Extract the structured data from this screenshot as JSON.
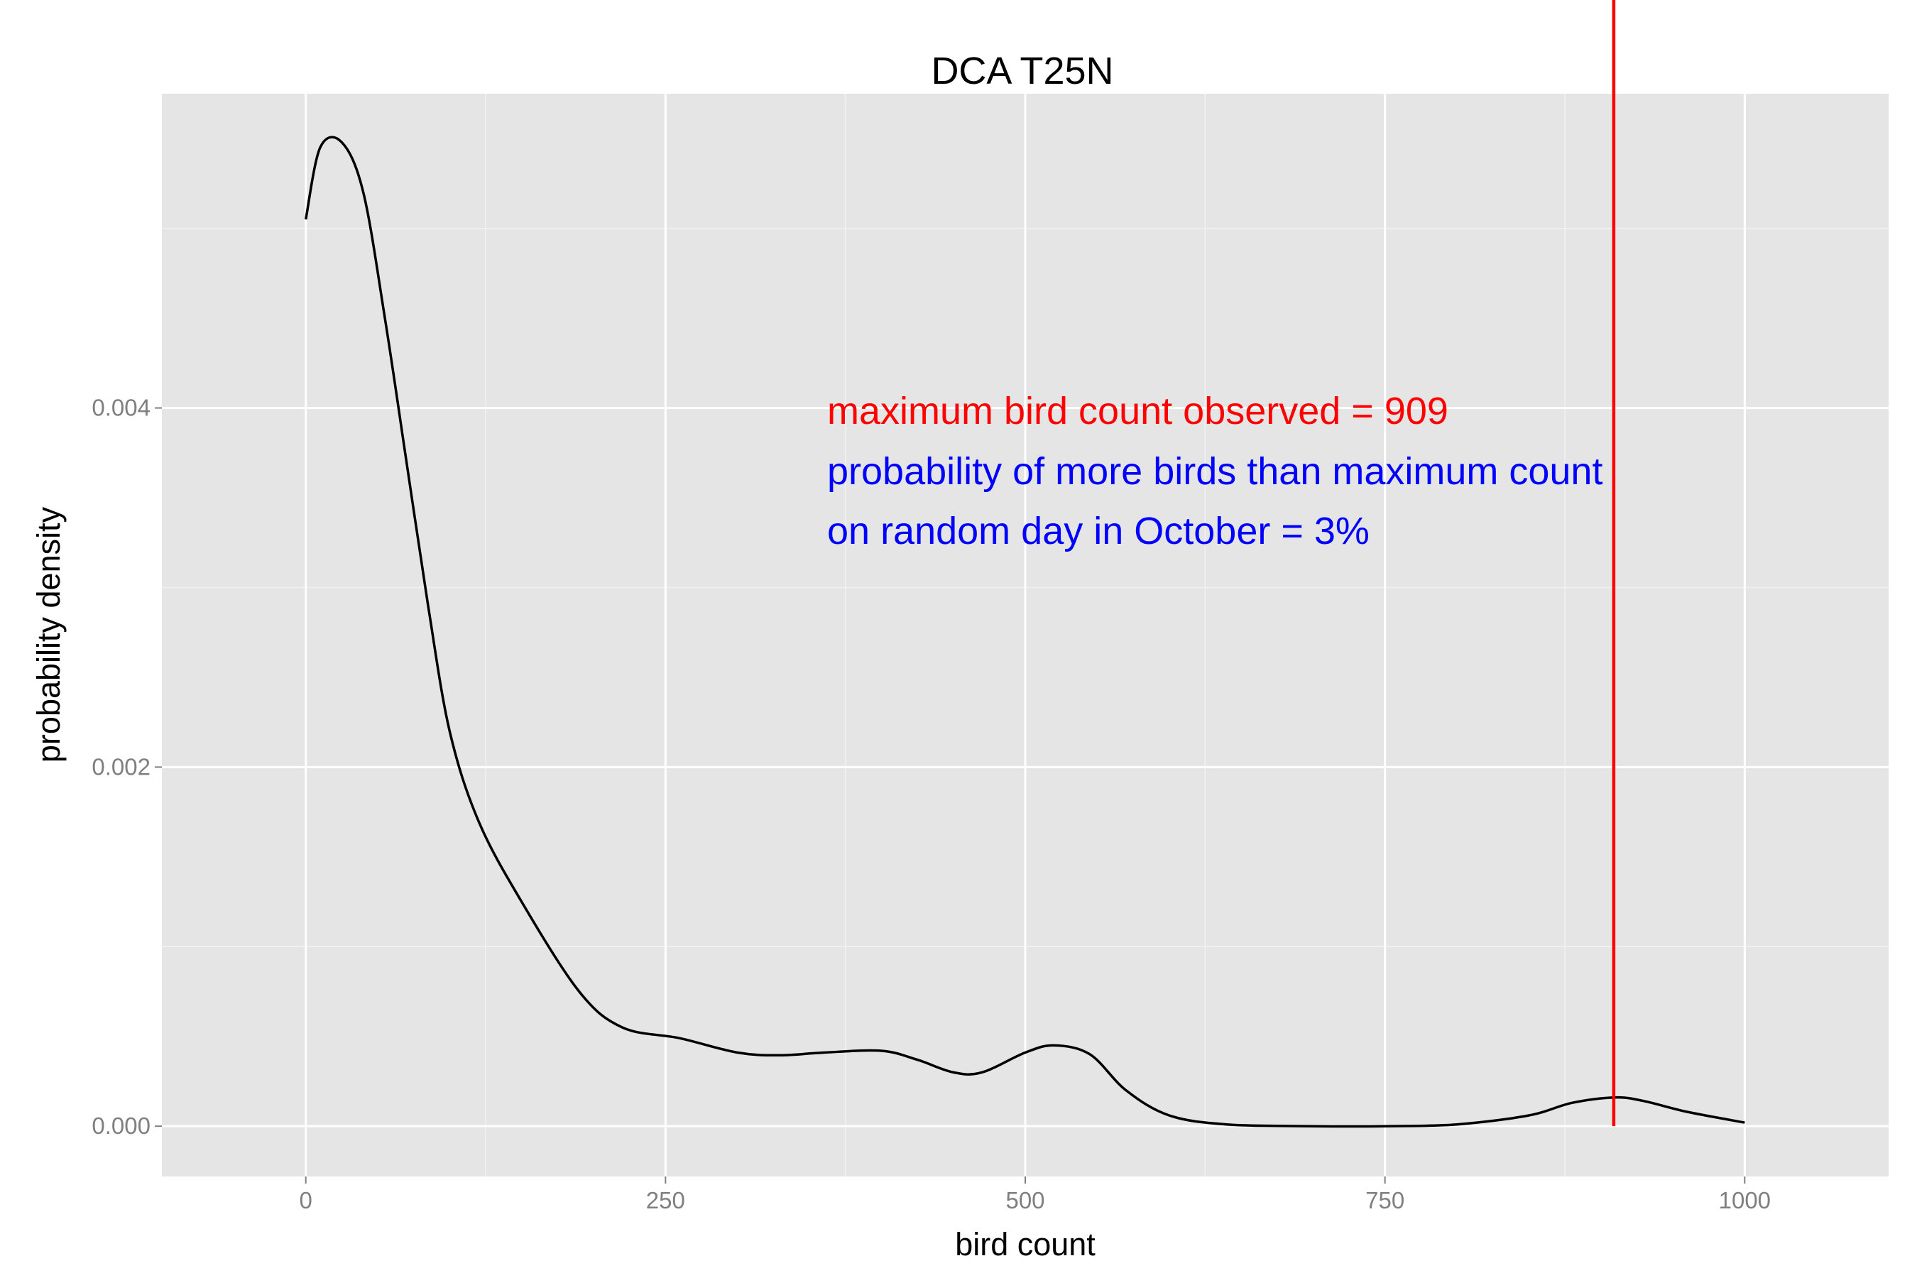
{
  "chart_data": {
    "type": "area",
    "title": "DCA T25N",
    "xlabel": "bird count",
    "ylabel": "probability density",
    "xlim": [
      -100,
      1100
    ],
    "ylim": [
      -0.00028,
      0.00575
    ],
    "x_ticks": [
      0,
      250,
      500,
      750,
      1000
    ],
    "x_tick_labels": [
      "0",
      "250",
      "500",
      "750",
      "1000"
    ],
    "y_ticks": [
      0,
      0.002,
      0.004
    ],
    "y_tick_labels": [
      "0.000",
      "0.002",
      "0.004"
    ],
    "grid": true,
    "background": "#e5e5e5",
    "series": [
      {
        "line_color": "#000000",
        "x": [
          0,
          10,
          25,
          40,
          55,
          70,
          85,
          100,
          120,
          150,
          190,
          220,
          260,
          300,
          330,
          360,
          400,
          425,
          450,
          470,
          500,
          520,
          545,
          570,
          600,
          640,
          700,
          750,
          800,
          850,
          880,
          910,
          930,
          960,
          1000
        ],
        "y": [
          0.00505,
          0.00545,
          0.00548,
          0.0052,
          0.0045,
          0.0037,
          0.0029,
          0.0022,
          0.0017,
          0.00125,
          0.00075,
          0.00055,
          0.00049,
          0.00041,
          0.000395,
          0.00041,
          0.00042,
          0.00037,
          0.0003,
          0.0003,
          0.00041,
          0.00045,
          0.0004,
          0.0002,
          6e-05,
          1e-05,
          0.0,
          0.0,
          1e-05,
          6e-05,
          0.00013,
          0.00016,
          0.00014,
          8e-05,
          2e-05
        ]
      }
    ],
    "max_count": 909,
    "max_line_color": "#ff0000",
    "tail_fill_color": "#7a79f2",
    "annotations": [
      {
        "text": "maximum bird count observed = 909",
        "color": "#ff0000"
      },
      {
        "text": "probability of more birds than maximum count",
        "color": "#0000ff"
      },
      {
        "text": "on random day in October = 3%",
        "color": "#0000ff"
      }
    ]
  }
}
